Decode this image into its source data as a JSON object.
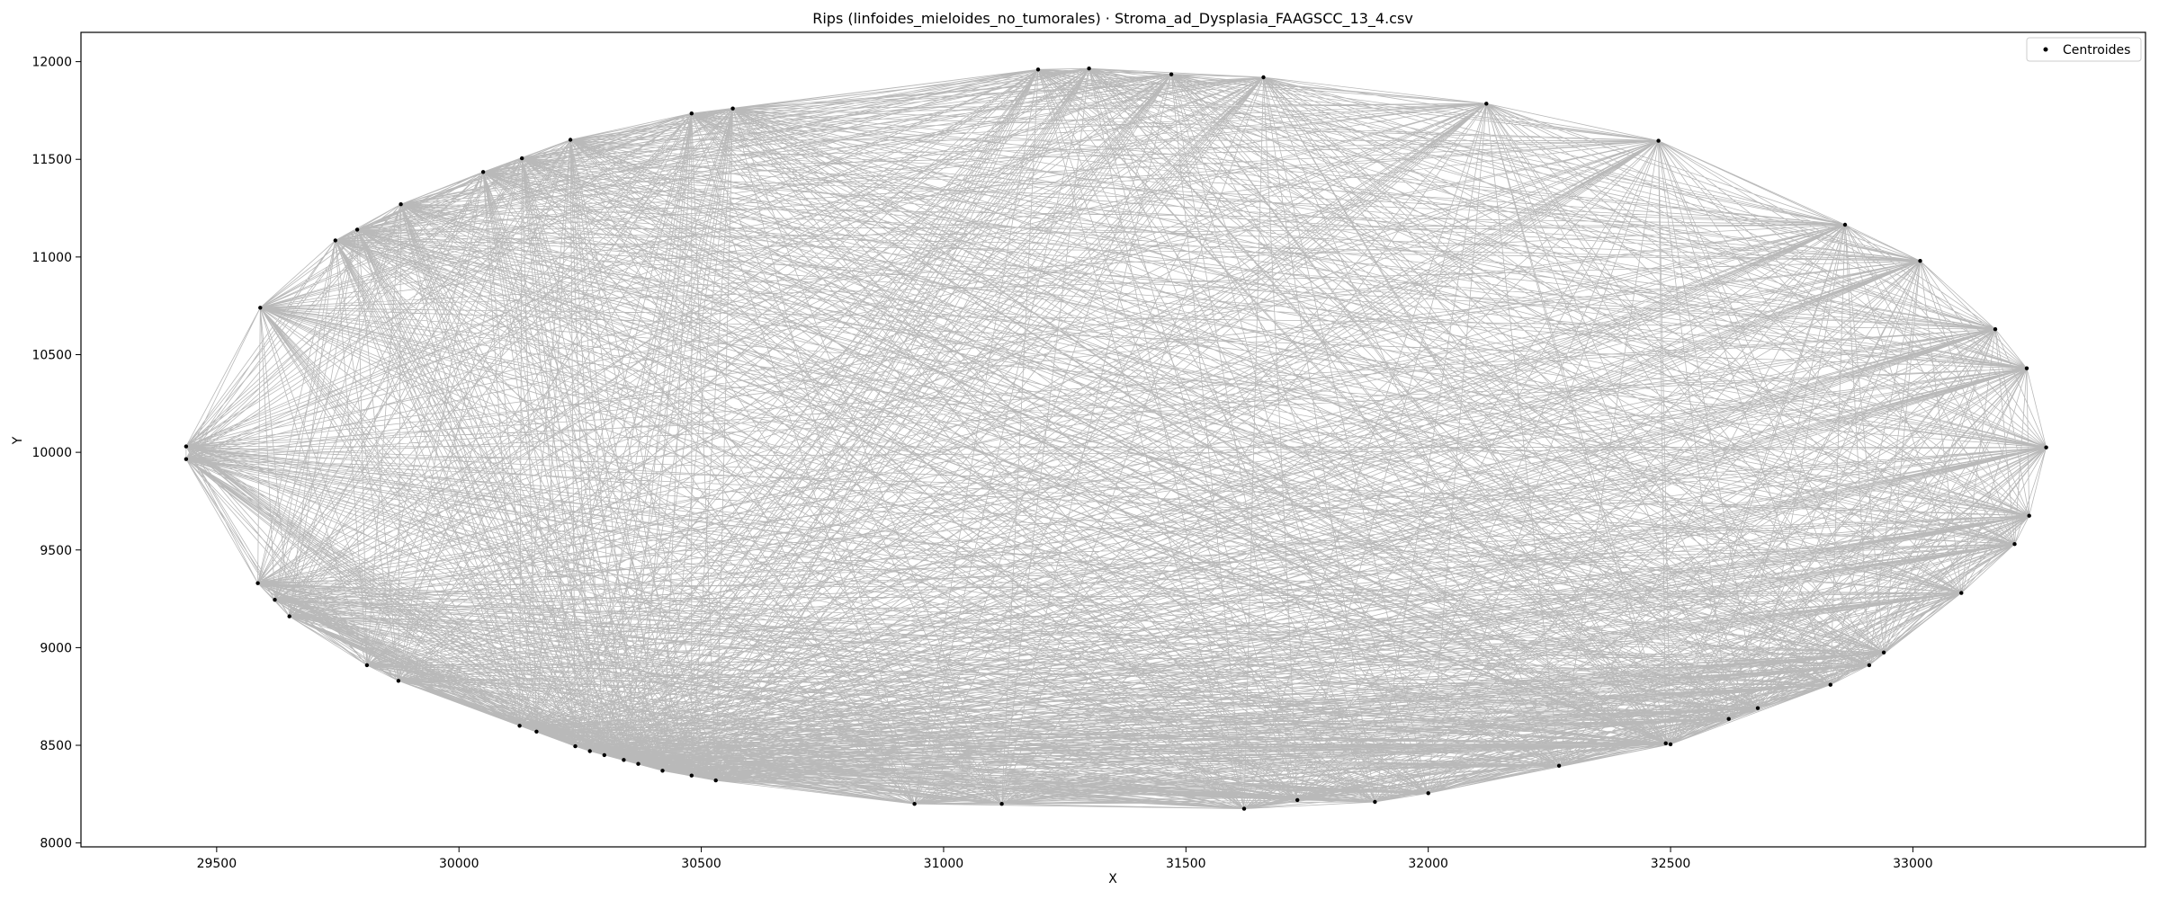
{
  "chart_data": {
    "type": "scatter",
    "title": "Rips (linfoides_mieloides_no_tumorales) · Stroma_ad_Dysplasia_FAAGSCC_13_4.csv",
    "xlabel": "X",
    "ylabel": "Y",
    "xlim": [
      29220,
      33480
    ],
    "ylim": [
      7980,
      12150
    ],
    "x_ticks": [
      29500,
      30000,
      30500,
      31000,
      31500,
      32000,
      32500,
      33000
    ],
    "y_ticks": [
      8000,
      8500,
      9000,
      9500,
      10000,
      10500,
      11000,
      11500,
      12000
    ],
    "x_tick_labels": [
      "29500",
      "30000",
      "30500",
      "31000",
      "31500",
      "32000",
      "32500",
      "33000"
    ],
    "y_tick_labels": [
      "8000",
      "8500",
      "9000",
      "9500",
      "10000",
      "10500",
      "11000",
      "11500",
      "12000"
    ],
    "grid": false,
    "legend_placement": "top-right",
    "edge_color": "#808080",
    "point_color": "#000000",
    "series": [
      {
        "name": "Centroides",
        "points": [
          [
            29437,
            10030
          ],
          [
            29437,
            9965
          ],
          [
            29585,
            9330
          ],
          [
            29620,
            9245
          ],
          [
            29650,
            9160
          ],
          [
            29810,
            8910
          ],
          [
            29875,
            8830
          ],
          [
            30125,
            8600
          ],
          [
            30160,
            8570
          ],
          [
            30240,
            8495
          ],
          [
            30270,
            8470
          ],
          [
            30300,
            8450
          ],
          [
            30340,
            8425
          ],
          [
            30370,
            8405
          ],
          [
            30420,
            8370
          ],
          [
            30480,
            8345
          ],
          [
            30530,
            8320
          ],
          [
            30940,
            8200
          ],
          [
            31120,
            8200
          ],
          [
            31620,
            8175
          ],
          [
            31730,
            8220
          ],
          [
            31890,
            8210
          ],
          [
            32000,
            8255
          ],
          [
            32270,
            8395
          ],
          [
            32490,
            8510
          ],
          [
            32500,
            8505
          ],
          [
            32620,
            8635
          ],
          [
            32680,
            8690
          ],
          [
            32830,
            8810
          ],
          [
            32910,
            8910
          ],
          [
            32940,
            8975
          ],
          [
            33100,
            9280
          ],
          [
            33210,
            9530
          ],
          [
            33240,
            9675
          ],
          [
            33275,
            10025
          ],
          [
            33235,
            10430
          ],
          [
            33170,
            10630
          ],
          [
            33015,
            10980
          ],
          [
            32860,
            11165
          ],
          [
            32475,
            11595
          ],
          [
            32120,
            11785
          ],
          [
            31660,
            11920
          ],
          [
            31470,
            11935
          ],
          [
            31300,
            11965
          ],
          [
            31195,
            11960
          ],
          [
            30480,
            11735
          ],
          [
            30565,
            11760
          ],
          [
            30230,
            11600
          ],
          [
            30130,
            11505
          ],
          [
            30050,
            11435
          ],
          [
            29880,
            11270
          ],
          [
            29790,
            11140
          ],
          [
            29745,
            11085
          ],
          [
            29590,
            10740
          ]
        ]
      }
    ]
  }
}
